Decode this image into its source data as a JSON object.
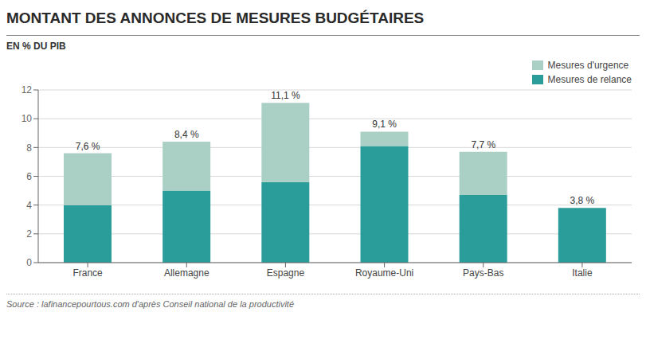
{
  "chart_data": {
    "type": "bar",
    "stacked": true,
    "title": "MONTANT DES ANNONCES DE MESURES BUDGÉTAIRES",
    "subtitle": "EN % DU PIB",
    "source": "Source : lafinancepourtous.com d'après Conseil national de la productivité",
    "categories": [
      "France",
      "Allemagne",
      "Espagne",
      "Royaume-Uni",
      "Pays-Bas",
      "Italie"
    ],
    "series": [
      {
        "name": "Mesures de relance",
        "color": "#2a9d9a",
        "values": [
          4.0,
          5.0,
          5.6,
          8.1,
          4.7,
          3.8
        ]
      },
      {
        "name": "Mesures d'urgence",
        "color": "#aacfc4",
        "values": [
          3.6,
          3.4,
          5.5,
          1.0,
          3.0,
          0.0
        ]
      }
    ],
    "totals": [
      7.6,
      8.4,
      11.1,
      9.1,
      7.7,
      3.8
    ],
    "total_labels": [
      "7,6 %",
      "8,4 %",
      "11,1 %",
      "9,1 %",
      "7,7 %",
      "3,8 %"
    ],
    "ylim": [
      0,
      12
    ],
    "yticks": [
      0,
      2,
      4,
      6,
      8,
      10,
      12
    ],
    "grid": true,
    "legend": "upper right"
  }
}
